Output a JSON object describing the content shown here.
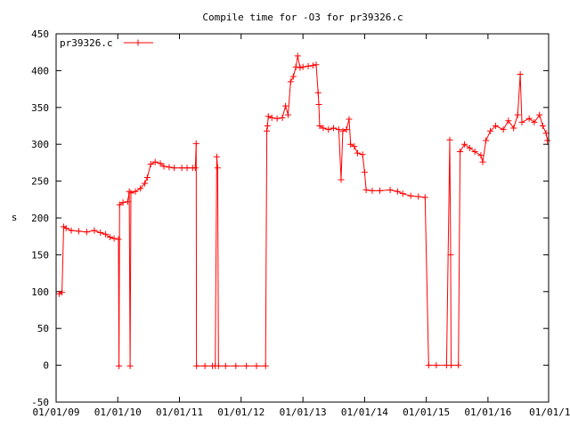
{
  "chart_data": {
    "type": "line",
    "title": "Compile time for -O3 for pr39326.c",
    "xlabel": "",
    "ylabel": "s",
    "xlim": [
      "2009-01-01",
      "2016-12-25"
    ],
    "ylim": [
      -50,
      450
    ],
    "y_ticks": [
      -50,
      0,
      50,
      100,
      150,
      200,
      250,
      300,
      350,
      400,
      450
    ],
    "x_ticks": [
      {
        "date": "2009-01-01",
        "label": "01/01/09"
      },
      {
        "date": "2010-01-01",
        "label": "01/01/10"
      },
      {
        "date": "2011-01-01",
        "label": "01/01/11"
      },
      {
        "date": "2012-01-01",
        "label": "01/01/12"
      },
      {
        "date": "2013-01-01",
        "label": "01/01/13"
      },
      {
        "date": "2014-01-01",
        "label": "01/01/14"
      },
      {
        "date": "2015-01-01",
        "label": "01/01/15"
      },
      {
        "date": "2016-01-01",
        "label": "01/01/16"
      },
      {
        "date": "2017-01-01",
        "label": "01/01/1"
      }
    ],
    "grid": false,
    "legend_position": "top-left",
    "series": [
      {
        "name": "pr39326.c",
        "color": "#ff0000",
        "marker": "plus",
        "points": [
          [
            "2009-01-20",
            97
          ],
          [
            "2009-02-05",
            99
          ],
          [
            "2009-02-15",
            188
          ],
          [
            "2009-03-01",
            186
          ],
          [
            "2009-04-01",
            183
          ],
          [
            "2009-05-15",
            182
          ],
          [
            "2009-07-01",
            181
          ],
          [
            "2009-08-15",
            183
          ],
          [
            "2009-09-20",
            180
          ],
          [
            "2009-10-20",
            178
          ],
          [
            "2009-11-15",
            174
          ],
          [
            "2009-12-10",
            172
          ],
          [
            "2010-01-05",
            171
          ],
          [
            "2010-01-08",
            -1
          ],
          [
            "2010-01-12",
            218
          ],
          [
            "2010-02-01",
            221
          ],
          [
            "2010-03-01",
            222
          ],
          [
            "2010-03-10",
            236
          ],
          [
            "2010-03-15",
            -1
          ],
          [
            "2010-03-20",
            234
          ],
          [
            "2010-04-15",
            236
          ],
          [
            "2010-05-15",
            240
          ],
          [
            "2010-06-10",
            247
          ],
          [
            "2010-06-25",
            255
          ],
          [
            "2010-07-15",
            273
          ],
          [
            "2010-08-10",
            276
          ],
          [
            "2010-09-10",
            274
          ],
          [
            "2010-10-01",
            270
          ],
          [
            "2010-11-01",
            269
          ],
          [
            "2010-12-01",
            268
          ],
          [
            "2011-01-15",
            268
          ],
          [
            "2011-02-15",
            268
          ],
          [
            "2011-03-20",
            268
          ],
          [
            "2011-04-05",
            268
          ],
          [
            "2011-04-10",
            301
          ],
          [
            "2011-04-12",
            -1
          ],
          [
            "2011-06-01",
            -1
          ],
          [
            "2011-07-15",
            -1
          ],
          [
            "2011-08-01",
            -1
          ],
          [
            "2011-08-10",
            283
          ],
          [
            "2011-08-15",
            268
          ],
          [
            "2011-08-20",
            -1
          ],
          [
            "2011-10-01",
            -1
          ],
          [
            "2011-12-01",
            -1
          ],
          [
            "2012-02-01",
            -1
          ],
          [
            "2012-04-01",
            -1
          ],
          [
            "2012-05-25",
            -1
          ],
          [
            "2012-06-01",
            318
          ],
          [
            "2012-06-05",
            325
          ],
          [
            "2012-06-10",
            338
          ],
          [
            "2012-07-01",
            336
          ],
          [
            "2012-08-01",
            335
          ],
          [
            "2012-09-01",
            336
          ],
          [
            "2012-09-20",
            352
          ],
          [
            "2012-10-05",
            340
          ],
          [
            "2012-10-20",
            385
          ],
          [
            "2012-11-05",
            392
          ],
          [
            "2012-11-20",
            405
          ],
          [
            "2012-12-01",
            420
          ],
          [
            "2012-12-15",
            404
          ],
          [
            "2013-01-01",
            405
          ],
          [
            "2013-02-01",
            406
          ],
          [
            "2013-03-01",
            407
          ],
          [
            "2013-03-20",
            408
          ],
          [
            "2013-04-01",
            370
          ],
          [
            "2013-04-05",
            354
          ],
          [
            "2013-04-10",
            325
          ],
          [
            "2013-05-01",
            322
          ],
          [
            "2013-06-01",
            320
          ],
          [
            "2013-07-01",
            322
          ],
          [
            "2013-08-01",
            320
          ],
          [
            "2013-08-15",
            252
          ],
          [
            "2013-08-25",
            318
          ],
          [
            "2013-09-15",
            320
          ],
          [
            "2013-10-01",
            334
          ],
          [
            "2013-10-10",
            300
          ],
          [
            "2013-11-01",
            297
          ],
          [
            "2013-11-20",
            288
          ],
          [
            "2013-12-20",
            286
          ],
          [
            "2014-01-01",
            262
          ],
          [
            "2014-01-10",
            238
          ],
          [
            "2014-02-15",
            237
          ],
          [
            "2014-04-01",
            237
          ],
          [
            "2014-06-01",
            238
          ],
          [
            "2014-07-15",
            236
          ],
          [
            "2014-08-15",
            233
          ],
          [
            "2014-10-01",
            230
          ],
          [
            "2014-11-15",
            229
          ],
          [
            "2014-12-25",
            228
          ],
          [
            "2015-01-15",
            0
          ],
          [
            "2015-03-01",
            0
          ],
          [
            "2015-05-01",
            0
          ],
          [
            "2015-05-20",
            306
          ],
          [
            "2015-05-25",
            150
          ],
          [
            "2015-05-28",
            0
          ],
          [
            "2015-07-10",
            0
          ],
          [
            "2015-07-20",
            290
          ],
          [
            "2015-08-15",
            300
          ],
          [
            "2015-09-15",
            295
          ],
          [
            "2015-10-15",
            290
          ],
          [
            "2015-11-20",
            285
          ],
          [
            "2015-12-01",
            276
          ],
          [
            "2015-12-20",
            305
          ],
          [
            "2016-01-15",
            318
          ],
          [
            "2016-02-15",
            325
          ],
          [
            "2016-04-01",
            320
          ],
          [
            "2016-05-01",
            332
          ],
          [
            "2016-06-01",
            322
          ],
          [
            "2016-06-25",
            340
          ],
          [
            "2016-07-10",
            395
          ],
          [
            "2016-07-20",
            330
          ],
          [
            "2016-09-01",
            335
          ],
          [
            "2016-10-01",
            330
          ],
          [
            "2016-11-01",
            340
          ],
          [
            "2016-11-20",
            325
          ],
          [
            "2016-12-10",
            315
          ],
          [
            "2016-12-18",
            305
          ]
        ]
      }
    ]
  }
}
